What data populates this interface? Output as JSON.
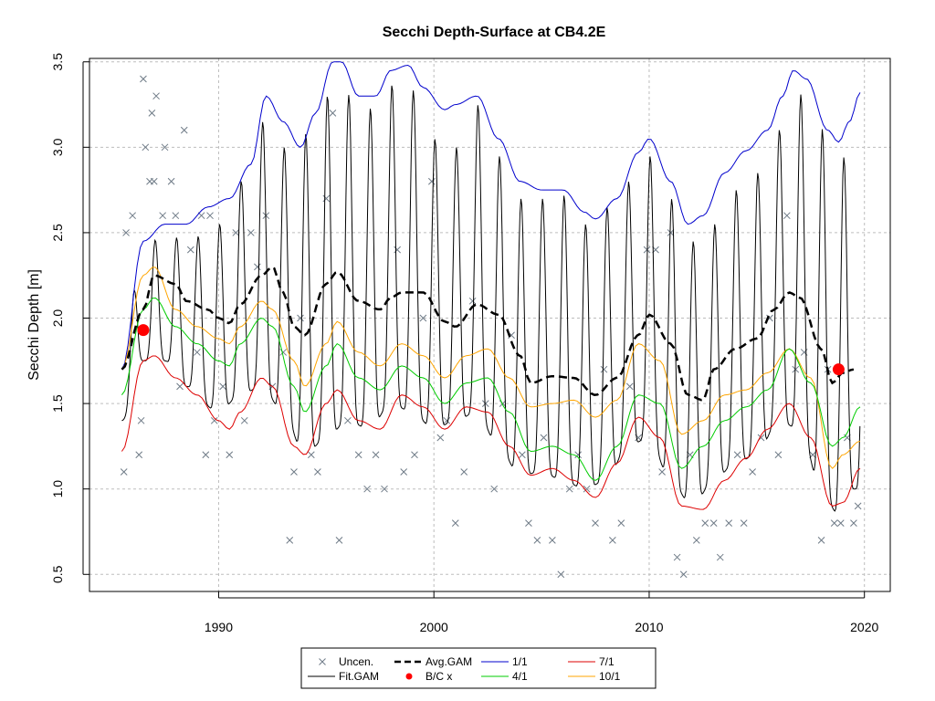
{
  "chart_data": {
    "type": "line",
    "title": "Secchi Depth-Surface at CB4.2E",
    "xlabel": "",
    "ylabel": "Secchi Depth [m]",
    "xlim": [
      1984,
      2021.2
    ],
    "ylim": [
      0.4,
      3.52
    ],
    "x_ticks": [
      1990,
      2000,
      2010,
      2020
    ],
    "y_ticks": [
      0.5,
      1.0,
      1.5,
      2.0,
      2.5,
      3.0,
      3.5
    ],
    "grid": true,
    "legend_position": "bottom",
    "colors": {
      "uncensored": "#6f7b87",
      "fit_gam": "#000000",
      "avg_gam": "#000000",
      "bc_x": "#ff0000",
      "q_1_1": "#0000cc",
      "q_4_1": "#00cc00",
      "q_7_1": "#dd0000",
      "q_10_1": "#ffa500"
    },
    "legend": [
      {
        "key": "uncensored",
        "label": "Uncen.",
        "symbol": "cross"
      },
      {
        "key": "avg_gam",
        "label": "Avg.GAM",
        "symbol": "dash"
      },
      {
        "key": "q_1_1",
        "label": "1/1",
        "symbol": "line"
      },
      {
        "key": "q_7_1",
        "label": "7/1",
        "symbol": "line"
      },
      {
        "key": "fit_gam",
        "label": "Fit.GAM",
        "symbol": "line"
      },
      {
        "key": "bc_x",
        "label": "B/C x",
        "symbol": "dot"
      },
      {
        "key": "q_4_1",
        "label": "4/1",
        "symbol": "line"
      },
      {
        "key": "q_10_1",
        "label": "10/1",
        "symbol": "line"
      }
    ],
    "series": [
      {
        "name": "1/1",
        "key": "q_1_1",
        "x": [
          1985.5,
          1986.5,
          1987.5,
          1988.5,
          1989.5,
          1990.5,
          1991.5,
          1992.2,
          1993,
          1993.8,
          1994.5,
          1995.3,
          1995.7,
          1996.5,
          1997.3,
          1998,
          1998.8,
          1999.5,
          2000.5,
          2001,
          2002,
          2003,
          2004,
          2005,
          2006,
          2007,
          2007.5,
          2008.5,
          2009.5,
          2010,
          2011,
          2011.8,
          2012.5,
          2013.5,
          2014.5,
          2015.5,
          2016.2,
          2016.7,
          2017.3,
          2018.3,
          2018.8,
          2019.3,
          2019.8
        ],
        "values": [
          1.7,
          2.45,
          2.55,
          2.55,
          2.65,
          2.7,
          2.9,
          3.3,
          3.15,
          3.0,
          3.2,
          3.5,
          3.5,
          3.3,
          3.3,
          3.45,
          3.48,
          3.35,
          3.22,
          3.25,
          3.3,
          3.05,
          2.8,
          2.75,
          2.75,
          2.62,
          2.58,
          2.7,
          2.97,
          3.05,
          2.8,
          2.55,
          2.6,
          2.85,
          2.98,
          3.1,
          3.3,
          3.45,
          3.4,
          3.1,
          3.03,
          3.15,
          3.32
        ]
      },
      {
        "name": "10/1",
        "key": "q_10_1",
        "x": [
          1985.5,
          1986.5,
          1987,
          1988,
          1989,
          1990,
          1990.5,
          1991,
          1992,
          1992.5,
          1993.5,
          1994,
          1995,
          1995.5,
          1996.5,
          1997.5,
          1998.5,
          1999.5,
          2000.5,
          2001.5,
          2002.5,
          2003.5,
          2004.5,
          2005.5,
          2006.5,
          2007.5,
          2008.5,
          2009.5,
          2010.5,
          2011.5,
          2012.5,
          2013.5,
          2014.5,
          2015.5,
          2016.5,
          2017.5,
          2018.5,
          2019,
          2019.8
        ],
        "values": [
          1.7,
          2.25,
          2.3,
          2.05,
          1.95,
          1.88,
          1.85,
          1.95,
          2.1,
          2.05,
          1.75,
          1.6,
          1.85,
          1.98,
          1.8,
          1.72,
          1.85,
          1.78,
          1.65,
          1.78,
          1.82,
          1.65,
          1.48,
          1.5,
          1.52,
          1.42,
          1.52,
          1.85,
          1.75,
          1.32,
          1.4,
          1.55,
          1.58,
          1.68,
          1.82,
          1.65,
          1.12,
          1.2,
          1.28
        ]
      },
      {
        "name": "4/1",
        "key": "q_4_1",
        "x": [
          1985.5,
          1986.5,
          1987,
          1988,
          1989,
          1990,
          1990.5,
          1991,
          1992,
          1992.5,
          1993.5,
          1994,
          1995,
          1995.5,
          1996.5,
          1997.5,
          1998.5,
          1999.5,
          2000.5,
          2001.5,
          2002.5,
          2003.5,
          2004.5,
          2005.5,
          2006.5,
          2007.5,
          2008.5,
          2009.5,
          2010.5,
          2011.5,
          2012.5,
          2013.5,
          2014.5,
          2015.5,
          2016.5,
          2017.5,
          2018.5,
          2019,
          2019.8
        ],
        "values": [
          1.55,
          2.05,
          2.12,
          1.95,
          1.85,
          1.75,
          1.72,
          1.85,
          2.0,
          1.95,
          1.6,
          1.45,
          1.72,
          1.85,
          1.65,
          1.58,
          1.72,
          1.65,
          1.5,
          1.62,
          1.65,
          1.45,
          1.22,
          1.25,
          1.2,
          1.05,
          1.25,
          1.55,
          1.5,
          1.12,
          1.25,
          1.4,
          1.48,
          1.58,
          1.82,
          1.62,
          1.25,
          1.3,
          1.48
        ]
      },
      {
        "name": "7/1",
        "key": "q_7_1",
        "x": [
          1985.5,
          1986.5,
          1987,
          1988,
          1989,
          1990,
          1990.5,
          1991,
          1992,
          1992.5,
          1993.5,
          1994,
          1995,
          1995.5,
          1996.5,
          1997.5,
          1998.5,
          1999.5,
          2000.5,
          2001.5,
          2002.5,
          2003.5,
          2004.5,
          2005.5,
          2006.5,
          2007.5,
          2008.5,
          2009.5,
          2010.5,
          2011.5,
          2012.5,
          2013.5,
          2014.5,
          2015.5,
          2016.5,
          2017.5,
          2018.5,
          2019,
          2019.8
        ],
        "values": [
          1.22,
          1.75,
          1.78,
          1.65,
          1.55,
          1.4,
          1.35,
          1.45,
          1.65,
          1.6,
          1.25,
          1.2,
          1.5,
          1.58,
          1.4,
          1.35,
          1.55,
          1.48,
          1.35,
          1.48,
          1.45,
          1.25,
          1.08,
          1.12,
          1.05,
          0.95,
          1.15,
          1.42,
          1.3,
          0.9,
          0.88,
          1.05,
          1.18,
          1.35,
          1.5,
          1.3,
          0.9,
          0.92,
          1.12
        ]
      },
      {
        "name": "Avg.GAM",
        "key": "avg_gam",
        "x": [
          1985.5,
          1986.5,
          1987,
          1988,
          1988.5,
          1989.5,
          1990,
          1990.5,
          1991,
          1992,
          1992.5,
          1993,
          1993.5,
          1994,
          1995,
          1995.5,
          1996.5,
          1997.5,
          1998,
          1998.5,
          1999.5,
          2000.5,
          2001,
          2002,
          2003,
          2004,
          2004.5,
          2005.5,
          2006.5,
          2007.5,
          2008.5,
          2009.5,
          2010,
          2011,
          2011.8,
          2012.5,
          2013,
          2014,
          2015,
          2015.8,
          2016.5,
          2017,
          2018,
          2018.5,
          2019,
          2019.5
        ],
        "values": [
          1.7,
          2.05,
          2.25,
          2.2,
          2.1,
          2.05,
          2.0,
          1.97,
          2.08,
          2.25,
          2.3,
          2.15,
          1.95,
          1.9,
          2.2,
          2.27,
          2.1,
          2.05,
          2.12,
          2.15,
          2.15,
          1.98,
          1.95,
          2.08,
          2.02,
          1.78,
          1.62,
          1.66,
          1.65,
          1.55,
          1.65,
          1.9,
          2.02,
          1.85,
          1.55,
          1.52,
          1.7,
          1.82,
          1.88,
          2.05,
          2.15,
          2.12,
          1.82,
          1.62,
          1.68,
          1.7
        ]
      }
    ],
    "fit_gam": {
      "name": "Fit.GAM",
      "key": "fit_gam",
      "x_start": 1985.5,
      "x_end": 2019.8,
      "steps_per_year": 24,
      "upper": {
        "x": [
          1985.5,
          1986.5,
          1987.5,
          1988.5,
          1990,
          1991,
          1992,
          1993,
          1994.5,
          1995.5,
          1996.5,
          1997.5,
          1998.5,
          2000,
          2001,
          2002,
          2003,
          2004,
          2005,
          2006,
          2007,
          2008,
          2009,
          2010,
          2011,
          2012,
          2013,
          2014,
          2015,
          2016,
          2016.7,
          2017.5,
          2018.5,
          2019.5
        ],
        "values": [
          1.8,
          2.4,
          2.5,
          2.45,
          2.55,
          2.8,
          3.15,
          3.0,
          3.1,
          3.45,
          3.2,
          3.25,
          3.45,
          3.05,
          3.0,
          3.25,
          2.95,
          2.7,
          2.7,
          2.72,
          2.55,
          2.65,
          2.8,
          2.95,
          2.7,
          2.45,
          2.55,
          2.75,
          2.85,
          3.1,
          3.35,
          3.25,
          3.0,
          2.9
        ]
      },
      "lower": {
        "x": [
          1985.5,
          1986.5,
          1987.5,
          1988.5,
          1990,
          1991,
          1992,
          1993,
          1994,
          1995,
          1996,
          1997,
          1998,
          1999,
          2000,
          2001,
          2002,
          2003,
          2004,
          2005,
          2006,
          2007,
          2008,
          2009,
          2010,
          2011,
          2012,
          2013,
          2014,
          2015,
          2016,
          2017,
          2018,
          2018.8,
          2019.5
        ],
        "values": [
          1.4,
          1.75,
          1.75,
          1.6,
          1.45,
          1.55,
          1.6,
          1.45,
          1.2,
          1.3,
          1.4,
          1.35,
          1.5,
          1.45,
          1.35,
          1.4,
          1.45,
          1.25,
          1.08,
          1.1,
          1.05,
          1.0,
          1.05,
          1.25,
          1.3,
          1.05,
          0.9,
          1.05,
          1.15,
          1.2,
          1.4,
          1.35,
          1.0,
          0.85,
          1.0
        ]
      }
    },
    "bc_points": {
      "name": "B/C x",
      "key": "bc_x",
      "x": [
        1986.5,
        2018.8
      ],
      "values": [
        1.93,
        1.7
      ]
    },
    "uncensored_points": {
      "name": "Uncen.",
      "key": "uncensored",
      "x": [
        1985.6,
        1985.7,
        1986.0,
        1986.3,
        1986.5,
        1986.6,
        1986.8,
        1986.9,
        1987.0,
        1987.1,
        1986.4,
        1987.4,
        1987.5,
        1987.8,
        1988.0,
        1988.2,
        1988.4,
        1988.7,
        1989.0,
        1989.2,
        1989.4,
        1989.6,
        1989.8,
        1990.2,
        1990.5,
        1990.8,
        1991.2,
        1991.5,
        1991.8,
        1992.2,
        1992.5,
        1993.0,
        1993.3,
        1993.5,
        1993.8,
        1994.3,
        1994.6,
        1995.0,
        1995.3,
        1995.6,
        1996.0,
        1996.5,
        1996.9,
        1997.3,
        1997.7,
        1998.3,
        1998.6,
        1999.1,
        1999.5,
        1999.9,
        2000.3,
        2000.6,
        2001.0,
        2001.4,
        2001.8,
        2002.4,
        2002.8,
        2003.2,
        2003.6,
        2004.1,
        2004.4,
        2004.8,
        2005.1,
        2005.5,
        2005.9,
        2006.3,
        2006.7,
        2007.1,
        2007.5,
        2007.9,
        2008.3,
        2008.7,
        2009.1,
        2009.5,
        2009.9,
        2010.3,
        2010.6,
        2011.0,
        2011.3,
        2011.6,
        2011.9,
        2012.2,
        2012.6,
        2013.0,
        2013.3,
        2013.7,
        2014.1,
        2014.4,
        2014.8,
        2015.2,
        2015.6,
        2016.0,
        2016.4,
        2016.8,
        2017.2,
        2017.6,
        2018.0,
        2018.3,
        2018.6,
        2018.9,
        2019.2,
        2019.5,
        2019.7
      ],
      "values": [
        1.1,
        2.5,
        2.6,
        1.2,
        3.4,
        3.0,
        2.8,
        3.2,
        2.8,
        3.3,
        1.4,
        2.6,
        3.0,
        2.8,
        2.6,
        1.6,
        3.1,
        2.4,
        1.8,
        2.6,
        1.2,
        2.6,
        1.4,
        1.6,
        1.2,
        2.5,
        1.4,
        2.5,
        2.3,
        2.6,
        1.6,
        1.8,
        0.7,
        1.1,
        2.0,
        1.2,
        1.1,
        2.7,
        3.2,
        0.7,
        1.4,
        1.2,
        1.0,
        1.2,
        1.0,
        2.4,
        1.1,
        1.2,
        2.0,
        2.8,
        1.3,
        1.4,
        0.8,
        1.1,
        2.1,
        1.5,
        1.0,
        1.5,
        1.9,
        1.2,
        0.8,
        0.7,
        1.3,
        0.7,
        0.5,
        1.0,
        1.2,
        1.0,
        0.8,
        1.7,
        0.7,
        0.8,
        1.6,
        1.3,
        2.4,
        2.4,
        1.1,
        2.5,
        0.6,
        0.5,
        1.2,
        0.7,
        0.8,
        0.8,
        0.6,
        0.8,
        1.2,
        0.8,
        1.1,
        1.3,
        2.0,
        1.2,
        2.6,
        1.7,
        1.8,
        1.2,
        0.7,
        1.7,
        0.8,
        0.8,
        1.3,
        0.8,
        0.9
      ]
    }
  }
}
